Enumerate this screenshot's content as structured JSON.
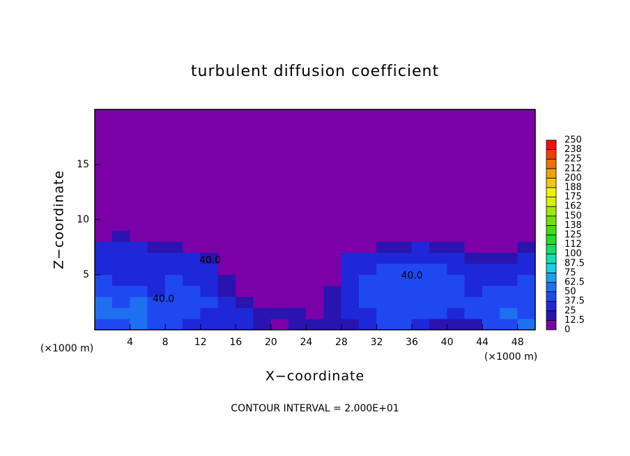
{
  "chart_data": {
    "type": "heatmap",
    "title": "turbulent diffusion coefficient",
    "x_label": "X−coordinate",
    "y_label": "Z−coordinate",
    "x_unit": "(×1000 m)",
    "y_unit": "(×1000 m)",
    "footnote": "CONTOUR INTERVAL = 2.000E+01",
    "xlim": [
      0,
      50
    ],
    "ylim": [
      0,
      20
    ],
    "xticks": [
      4,
      8,
      12,
      16,
      20,
      24,
      28,
      32,
      36,
      40,
      44,
      48
    ],
    "yticks": [
      5,
      10,
      15
    ],
    "x": [
      0,
      2,
      4,
      6,
      8,
      10,
      12,
      14,
      16,
      18,
      20,
      22,
      24,
      26,
      28,
      30,
      32,
      34,
      36,
      38,
      40,
      42,
      44,
      46,
      48,
      50
    ],
    "y": [
      0,
      1,
      2,
      3,
      4,
      5,
      6,
      7,
      8,
      9,
      20
    ],
    "z": [
      [
        45,
        45,
        60,
        40,
        40,
        35,
        30,
        35,
        25,
        15,
        10,
        20,
        15,
        20,
        15,
        25,
        45,
        40,
        35,
        20,
        15,
        20,
        40,
        45,
        50
      ],
      [
        50,
        50,
        55,
        40,
        45,
        40,
        35,
        30,
        35,
        20,
        15,
        15,
        10,
        20,
        25,
        30,
        45,
        45,
        40,
        40,
        35,
        40,
        45,
        50,
        45
      ],
      [
        50,
        45,
        50,
        40,
        45,
        40,
        40,
        25,
        15,
        10,
        10,
        10,
        10,
        15,
        30,
        40,
        45,
        40,
        40,
        40,
        40,
        40,
        45,
        45,
        45
      ],
      [
        45,
        40,
        40,
        35,
        40,
        40,
        35,
        20,
        10,
        5,
        5,
        5,
        5,
        15,
        35,
        40,
        40,
        40,
        40,
        40,
        40,
        35,
        40,
        40,
        40
      ],
      [
        40,
        35,
        35,
        35,
        40,
        35,
        30,
        15,
        5,
        5,
        5,
        5,
        5,
        10,
        35,
        40,
        40,
        40,
        40,
        40,
        40,
        35,
        35,
        35,
        40
      ],
      [
        35,
        35,
        30,
        35,
        35,
        30,
        25,
        10,
        5,
        0,
        0,
        0,
        0,
        10,
        30,
        35,
        40,
        40,
        40,
        40,
        35,
        30,
        30,
        30,
        35
      ],
      [
        35,
        30,
        30,
        30,
        30,
        25,
        15,
        5,
        0,
        0,
        0,
        0,
        0,
        5,
        25,
        25,
        30,
        35,
        35,
        35,
        30,
        20,
        15,
        20,
        30
      ],
      [
        30,
        25,
        25,
        20,
        15,
        10,
        5,
        0,
        0,
        0,
        0,
        0,
        0,
        0,
        10,
        10,
        15,
        20,
        25,
        20,
        15,
        10,
        5,
        10,
        15
      ],
      [
        10,
        15,
        10,
        5,
        5,
        0,
        0,
        0,
        0,
        0,
        0,
        0,
        0,
        0,
        0,
        0,
        0,
        5,
        5,
        5,
        0,
        0,
        0,
        0,
        0
      ],
      [
        0,
        0,
        0,
        0,
        0,
        0,
        0,
        0,
        0,
        0,
        0,
        0,
        0,
        0,
        0,
        0,
        0,
        0,
        0,
        0,
        0,
        0,
        0,
        0,
        0
      ]
    ],
    "levels": [
      0,
      12.5,
      25,
      37.5,
      50,
      62.5,
      75,
      87.5,
      100,
      {
        "value": 112.5,
        "label": "112"
      },
      125,
      {
        "value": 137.5,
        "label": "138"
      },
      150,
      {
        "value": 162.5,
        "label": "162"
      },
      175,
      {
        "value": 187.5,
        "label": "188"
      },
      200,
      {
        "value": 212.5,
        "label": "212"
      },
      225,
      {
        "value": 237.5,
        "label": "238"
      },
      250
    ],
    "colors": [
      "#7a00a8",
      "#2a14b0",
      "#1e28d8",
      "#2048f0",
      "#1e70f0",
      "#1aa0f0",
      "#18d0e8",
      "#10e0b0",
      "#10e060",
      "#20e020",
      "#40e000",
      "#70e000",
      "#a0e800",
      "#d8f000",
      "#f0f000",
      "#f0c800",
      "#f0a000",
      "#f07000",
      "#f04000",
      "#f01010"
    ],
    "contour_labels": [
      {
        "text": "40.0",
        "x": 13.1,
        "y": 6.3
      },
      {
        "text": "40.0",
        "x": 7.8,
        "y": 2.8
      },
      {
        "text": "40.0",
        "x": 36,
        "y": 4.9
      }
    ]
  }
}
